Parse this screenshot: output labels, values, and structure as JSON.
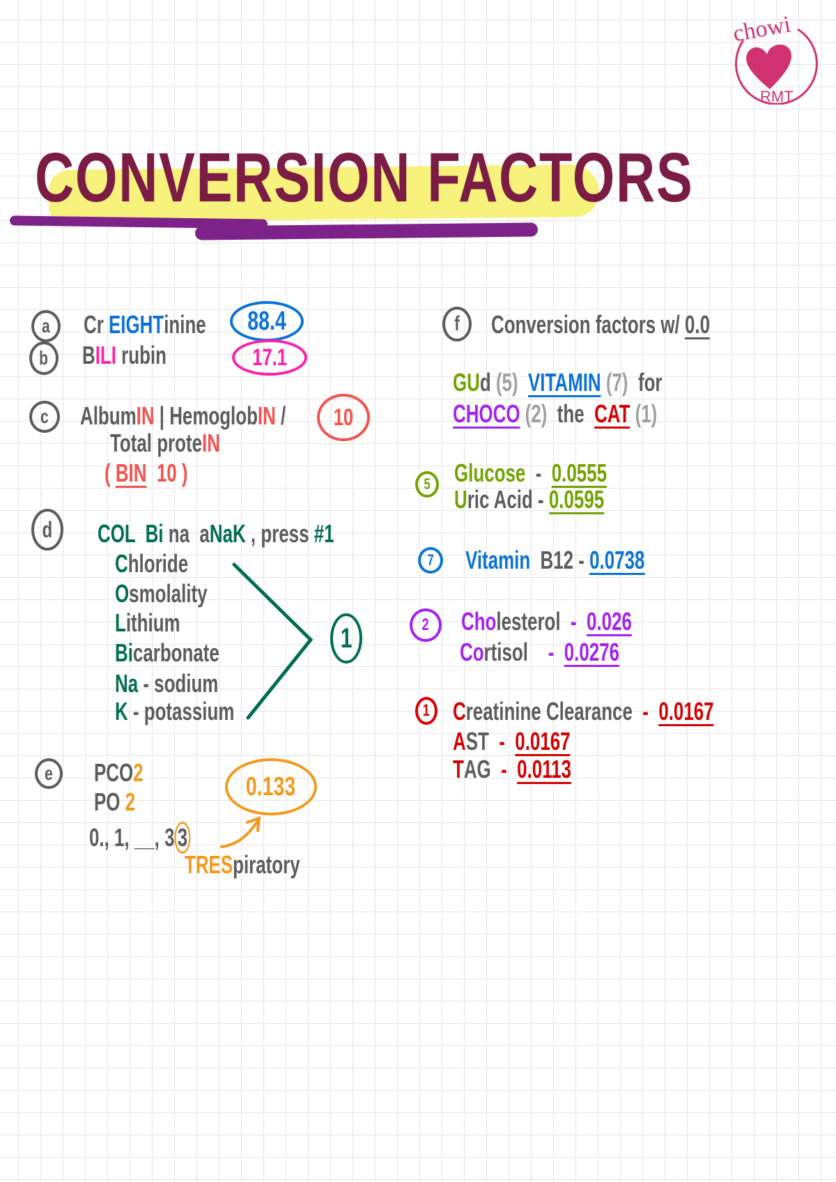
{
  "logo": {
    "text_top": "chowi",
    "text_bottom": "RMT",
    "color": "#d0326f"
  },
  "title": "CONVERSION FACTORS",
  "colors": {
    "grey": "#5c5c5c",
    "lightgrey": "#a0a0a0",
    "blue": "#0a72d6",
    "pink": "#ff1fa8",
    "coral": "#f4524c",
    "green": "#006e4f",
    "orange": "#f39a1e",
    "lime": "#72a300",
    "purple": "#a421ef",
    "red": "#d40000",
    "title": "#7b1c45",
    "highlight": "#f7f27c",
    "underline": "#7d2289"
  },
  "badges": [
    {
      "id": "a",
      "text": "a",
      "color": "grey"
    },
    {
      "id": "b",
      "text": "b",
      "color": "grey"
    },
    {
      "id": "c",
      "text": "c",
      "color": "grey"
    },
    {
      "id": "d",
      "text": "d",
      "color": "grey"
    },
    {
      "id": "e",
      "text": "e",
      "color": "grey"
    },
    {
      "id": "f",
      "text": "f",
      "color": "grey"
    },
    {
      "id": "v88",
      "text": "88.4",
      "color": "blue"
    },
    {
      "id": "v17",
      "text": "17.1",
      "color": "pink"
    },
    {
      "id": "v10",
      "text": "10",
      "color": "coral"
    },
    {
      "id": "one",
      "text": "1",
      "color": "green"
    },
    {
      "id": "v133",
      "text": "0.133",
      "color": "orange"
    },
    {
      "id": "n5",
      "text": "5",
      "color": "lime"
    },
    {
      "id": "n7",
      "text": "7",
      "color": "blue"
    },
    {
      "id": "n2",
      "text": "2",
      "color": "purple"
    },
    {
      "id": "n1",
      "text": "1",
      "color": "red"
    }
  ],
  "lines": [
    {
      "id": "a1",
      "segs": [
        {
          "t": "Cr ",
          "c": "grey"
        },
        {
          "t": "EIGHT",
          "c": "blue"
        },
        {
          "t": "inine",
          "c": "grey"
        }
      ]
    },
    {
      "id": "b1",
      "segs": [
        {
          "t": "B",
          "c": "grey"
        },
        {
          "t": "ILI",
          "c": "pink"
        },
        {
          "t": " rubin",
          "c": "grey"
        }
      ]
    },
    {
      "id": "c1",
      "segs": [
        {
          "t": "Album",
          "c": "grey"
        },
        {
          "t": "IN",
          "c": "coral"
        },
        {
          "t": " | Hemoglob",
          "c": "grey"
        },
        {
          "t": "IN",
          "c": "coral"
        },
        {
          "t": " /",
          "c": "grey"
        }
      ]
    },
    {
      "id": "c2",
      "segs": [
        {
          "t": "Total prote",
          "c": "grey"
        },
        {
          "t": "IN",
          "c": "coral"
        }
      ]
    },
    {
      "id": "c3",
      "segs": [
        {
          "t": "( ",
          "c": "coral"
        },
        {
          "t": "BIN",
          "c": "coral",
          "u": true
        },
        {
          "t": "  10 )",
          "c": "coral"
        }
      ]
    },
    {
      "id": "d0",
      "segs": [
        {
          "t": "COL  Bi ",
          "c": "green"
        },
        {
          "t": "na  ",
          "c": "grey"
        },
        {
          "t": "a",
          "c": "grey"
        },
        {
          "t": "NaK",
          "c": "green"
        },
        {
          "t": " , press ",
          "c": "grey"
        },
        {
          "t": "#1",
          "c": "green"
        }
      ]
    },
    {
      "id": "d1",
      "segs": [
        {
          "t": "C",
          "c": "green"
        },
        {
          "t": "hloride",
          "c": "grey"
        }
      ]
    },
    {
      "id": "d2",
      "segs": [
        {
          "t": "O",
          "c": "green"
        },
        {
          "t": "smolality",
          "c": "grey"
        }
      ]
    },
    {
      "id": "d3",
      "segs": [
        {
          "t": "L",
          "c": "green"
        },
        {
          "t": "ithium",
          "c": "grey"
        }
      ]
    },
    {
      "id": "d4",
      "segs": [
        {
          "t": "Bi",
          "c": "green"
        },
        {
          "t": "carbonate",
          "c": "grey"
        }
      ]
    },
    {
      "id": "d5",
      "segs": [
        {
          "t": "Na",
          "c": "green"
        },
        {
          "t": " - sodium",
          "c": "grey"
        }
      ]
    },
    {
      "id": "d6",
      "segs": [
        {
          "t": "K",
          "c": "green"
        },
        {
          "t": " - potassium",
          "c": "grey"
        }
      ]
    },
    {
      "id": "e1",
      "segs": [
        {
          "t": "PCO",
          "c": "grey"
        },
        {
          "t": "2",
          "c": "orange"
        }
      ]
    },
    {
      "id": "e2",
      "segs": [
        {
          "t": "PO ",
          "c": "grey"
        },
        {
          "t": "2",
          "c": "orange"
        }
      ]
    },
    {
      "id": "e3",
      "segs": [
        {
          "t": "0., 1, __, 3",
          "c": "grey"
        },
        {
          "t": "3",
          "c": "grey",
          "circ": true
        }
      ]
    },
    {
      "id": "e4",
      "segs": [
        {
          "t": "TRES",
          "c": "orange"
        },
        {
          "t": "piratory",
          "c": "grey"
        }
      ]
    },
    {
      "id": "f0",
      "segs": [
        {
          "t": "Conversion factors w/ ",
          "c": "grey"
        },
        {
          "t": "0.0",
          "c": "grey",
          "u": true
        }
      ]
    },
    {
      "id": "f1",
      "segs": [
        {
          "t": "GU",
          "c": "lime"
        },
        {
          "t": "d ",
          "c": "grey"
        },
        {
          "t": "(5)  ",
          "c": "lightgrey"
        },
        {
          "t": "VITAMIN",
          "c": "blue",
          "u": true
        },
        {
          "t": " (7)  ",
          "c": "lightgrey"
        },
        {
          "t": "for",
          "c": "grey"
        }
      ]
    },
    {
      "id": "f2",
      "segs": [
        {
          "t": "CHOCO",
          "c": "purple",
          "u": true
        },
        {
          "t": " (2)  ",
          "c": "lightgrey"
        },
        {
          "t": "the  ",
          "c": "grey"
        },
        {
          "t": "CAT",
          "c": "red",
          "u": true
        },
        {
          "t": " (1)",
          "c": "lightgrey"
        }
      ]
    },
    {
      "id": "g1",
      "segs": [
        {
          "t": "Glucose",
          "c": "lime"
        },
        {
          "t": "  -  ",
          "c": "grey"
        },
        {
          "t": "0.0555",
          "c": "lime",
          "u": true
        }
      ]
    },
    {
      "id": "g2",
      "segs": [
        {
          "t": "U",
          "c": "lime"
        },
        {
          "t": "ric Acid",
          "c": "grey"
        },
        {
          "t": " - ",
          "c": "grey"
        },
        {
          "t": "0.0595",
          "c": "lime",
          "u": true
        }
      ]
    },
    {
      "id": "v1",
      "segs": [
        {
          "t": "Vitamin",
          "c": "blue"
        },
        {
          "t": "  B12 - ",
          "c": "grey"
        },
        {
          "t": "0.0738",
          "c": "blue",
          "u": true
        }
      ]
    },
    {
      "id": "h1",
      "segs": [
        {
          "t": "Cho",
          "c": "purple"
        },
        {
          "t": "lesterol",
          "c": "grey"
        },
        {
          "t": "  -  ",
          "c": "purple"
        },
        {
          "t": "0.026",
          "c": "purple",
          "u": true
        }
      ]
    },
    {
      "id": "h2",
      "segs": [
        {
          "t": "Co",
          "c": "purple"
        },
        {
          "t": "rtisol",
          "c": "grey"
        },
        {
          "t": "    -  ",
          "c": "purple"
        },
        {
          "t": "0.0276",
          "c": "purple",
          "u": true
        }
      ]
    },
    {
      "id": "r1",
      "segs": [
        {
          "t": "C",
          "c": "red"
        },
        {
          "t": "reatinine Clearance",
          "c": "grey"
        },
        {
          "t": "  -  ",
          "c": "red"
        },
        {
          "t": "0.0167",
          "c": "red",
          "u": true
        }
      ]
    },
    {
      "id": "r2",
      "segs": [
        {
          "t": "A",
          "c": "red"
        },
        {
          "t": "ST",
          "c": "grey"
        },
        {
          "t": "  -  ",
          "c": "red"
        },
        {
          "t": "0.0167",
          "c": "red",
          "u": true
        }
      ]
    },
    {
      "id": "r3",
      "segs": [
        {
          "t": "T",
          "c": "red"
        },
        {
          "t": "AG",
          "c": "grey"
        },
        {
          "t": "  -  ",
          "c": "red"
        },
        {
          "t": "0.0113",
          "c": "red",
          "u": true
        }
      ]
    }
  ]
}
